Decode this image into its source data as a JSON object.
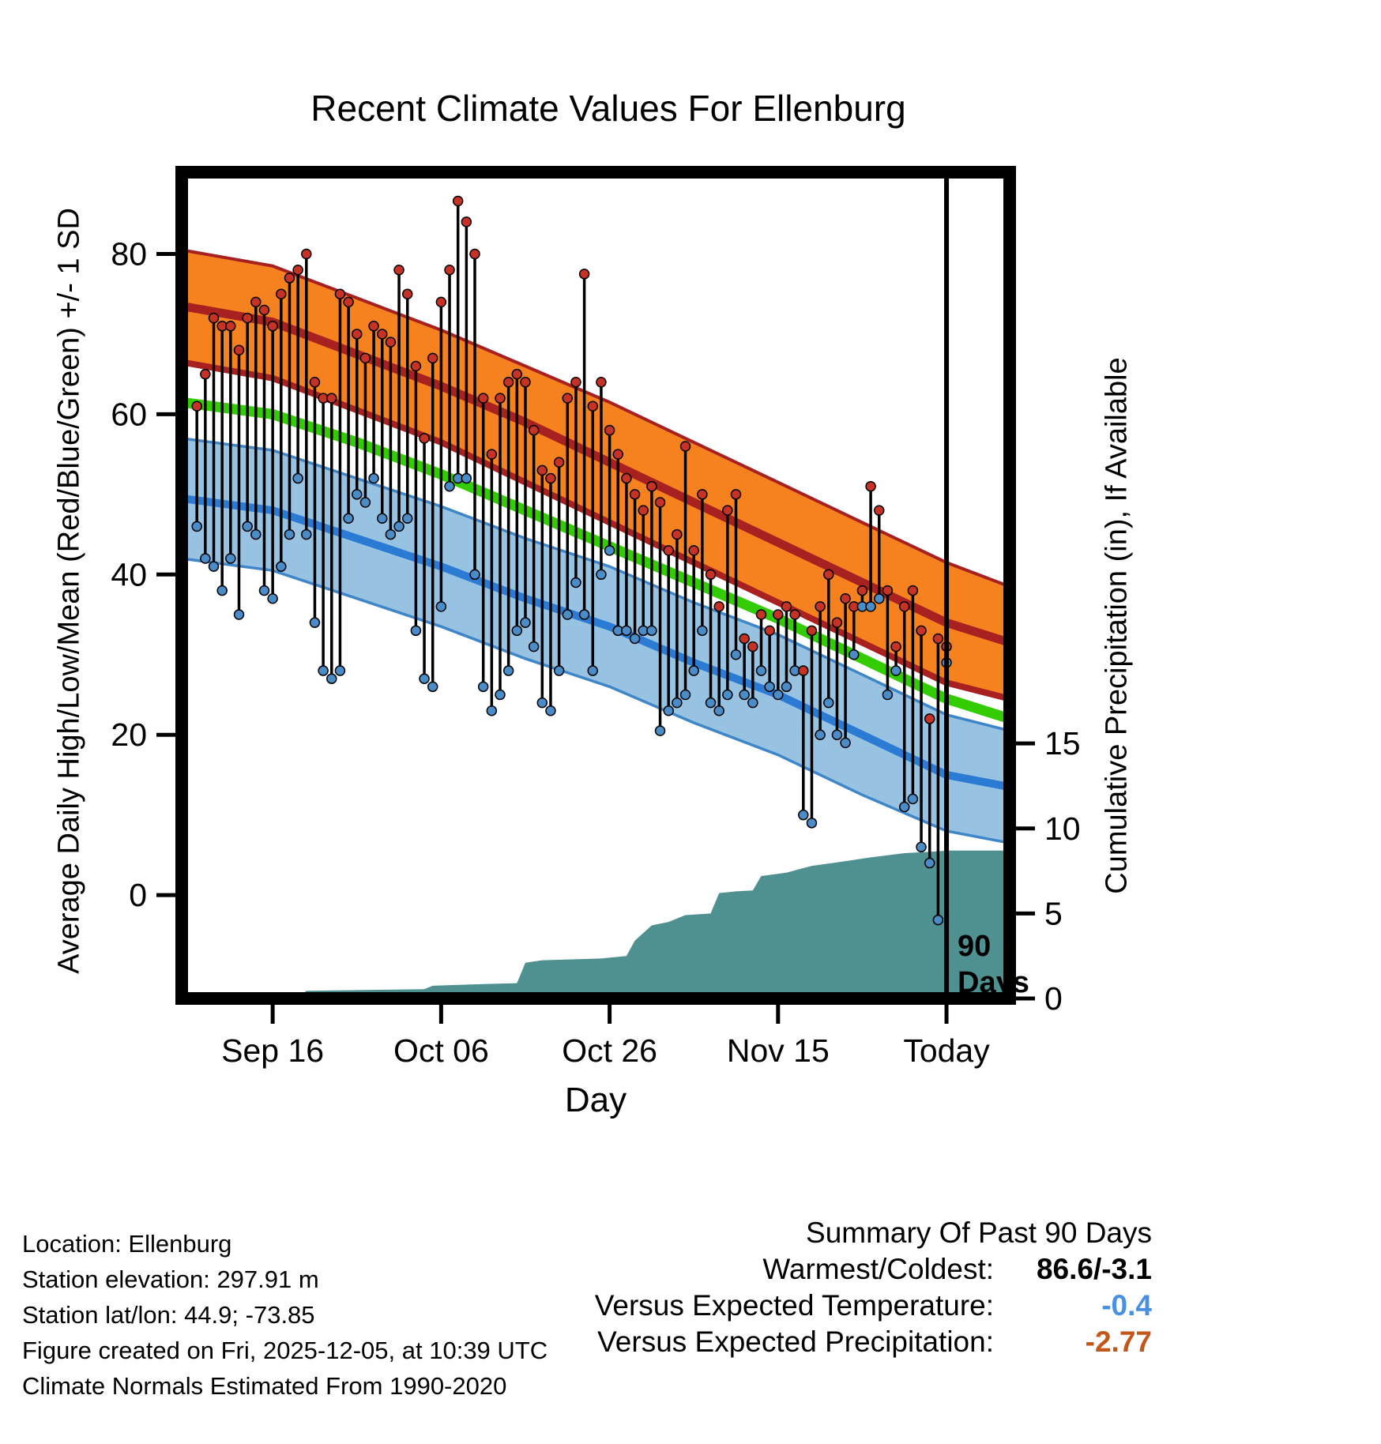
{
  "chart_data": {
    "type": "combo",
    "subtypes": [
      "band",
      "line",
      "hilo-scatter",
      "area"
    ],
    "title": "Recent Climate Values For Ellenburg",
    "xlabel": "Day",
    "ylabel_left": "Average Daily High/Low/Mean (Red/Blue/Green) +/- 1 SD",
    "ylabel_right": "Cumulative Precipitation (in), If Available",
    "x_tick_labels": [
      "Sep 16",
      "Oct 06",
      "Oct 26",
      "Nov 15",
      "Today"
    ],
    "x_tick_days": [
      9,
      29,
      49,
      69,
      89
    ],
    "x_range_days": [
      -1.8,
      96.5
    ],
    "y_left_ticks": [
      0,
      20,
      40,
      60,
      80
    ],
    "y_left_range": [
      -12.9,
      90.2
    ],
    "y_right_ticks": [
      0,
      5,
      10,
      15
    ],
    "y_right_range": [
      0,
      48.6
    ],
    "grid": false,
    "today_day": 89,
    "today_label_lines": [
      "90",
      "Days"
    ],
    "daily": {
      "high": [
        61,
        65,
        72,
        71,
        71,
        68,
        72,
        74,
        73,
        71,
        75,
        77,
        78,
        80,
        64,
        62,
        62,
        75,
        74,
        70,
        67,
        71,
        70,
        69,
        78,
        75,
        66,
        57,
        67,
        74,
        78,
        86.6,
        84,
        80,
        62,
        55,
        62,
        64,
        65,
        64,
        58,
        53,
        52,
        54,
        62,
        64,
        77.5,
        61,
        64,
        58,
        55,
        52,
        50,
        48,
        51,
        49,
        43,
        45,
        56,
        43,
        50,
        40,
        36,
        48,
        50,
        32,
        31,
        35,
        33,
        35,
        36,
        35,
        28,
        33,
        36,
        40,
        34,
        37,
        36,
        38,
        51,
        48,
        38,
        31,
        36,
        38,
        33,
        22,
        32,
        31
      ],
      "low": [
        46,
        42,
        41,
        38,
        42,
        35,
        46,
        45,
        38,
        37,
        41,
        45,
        52,
        45,
        34,
        28,
        27,
        28,
        47,
        50,
        49,
        52,
        47,
        45,
        46,
        47,
        33,
        27,
        26,
        36,
        51,
        52,
        52,
        40,
        26,
        23,
        25,
        28,
        33,
        34,
        31,
        24,
        23,
        28,
        35,
        39,
        35,
        28,
        40,
        43,
        33,
        33,
        32,
        33,
        33,
        20.5,
        23,
        24,
        25,
        28,
        33,
        24,
        23,
        25,
        30,
        25,
        24,
        28,
        26,
        25,
        26,
        28,
        10,
        9,
        20,
        24,
        20,
        19,
        30,
        36,
        36,
        37,
        25,
        28,
        11,
        12,
        6,
        4,
        -3.1,
        29
      ]
    },
    "normals": {
      "days": [
        -1.8,
        9,
        19,
        29,
        39,
        49,
        59,
        69,
        79,
        89,
        96.5
      ],
      "high_upper": [
        80.5,
        78.5,
        74.5,
        70.5,
        66,
        61.5,
        56.5,
        51.5,
        46.5,
        41.5,
        38.5
      ],
      "high_mean": [
        73.5,
        71.5,
        67.5,
        63.5,
        59,
        54,
        49,
        44,
        39,
        34,
        31.5
      ],
      "high_lower": [
        66.5,
        64.5,
        60.5,
        56.5,
        51.5,
        46.5,
        41.5,
        36.5,
        31.5,
        26.5,
        24.5
      ],
      "mean": [
        61.5,
        60,
        56.5,
        52.5,
        48,
        43.5,
        39,
        34.5,
        29.5,
        24.5,
        22
      ],
      "low_upper": [
        57,
        55.5,
        52,
        48.5,
        44.5,
        41,
        36.5,
        32.5,
        27.5,
        22.5,
        20.5
      ],
      "low_mean": [
        49.5,
        48,
        44.5,
        41,
        37,
        33.5,
        29,
        25,
        20,
        15,
        13.5
      ],
      "low_lower": [
        42,
        40.5,
        37,
        33.5,
        29.5,
        26,
        21.5,
        17.5,
        12.5,
        8,
        6.5
      ]
    },
    "precip_cumulative": {
      "days": [
        -1.8,
        12,
        13,
        20,
        27,
        28,
        34,
        38,
        39,
        41,
        48,
        51,
        52,
        54,
        56,
        58,
        61,
        62,
        64,
        66,
        67,
        70,
        73,
        76,
        80,
        84,
        88,
        89,
        96.5
      ],
      "values": [
        0,
        0,
        0.45,
        0.5,
        0.55,
        0.75,
        0.85,
        0.9,
        2.1,
        2.25,
        2.35,
        2.5,
        3.4,
        4.3,
        4.5,
        4.9,
        5.0,
        6.2,
        6.3,
        6.35,
        7.2,
        7.4,
        7.8,
        8.0,
        8.3,
        8.55,
        8.65,
        8.7,
        8.7
      ]
    },
    "colors": {
      "high_band": "#F5821F",
      "high_line": "#A82020",
      "low_band": "#97C2E2",
      "low_edge": "#3E86C8",
      "low_line": "#2B7BD4",
      "mean_line": "#33CC00",
      "high_dot": "#C63326",
      "low_dot": "#4A8CC8",
      "precip_area": "#4F9090",
      "frame": "#000000"
    }
  },
  "footer": {
    "lines": [
      "Location: Ellenburg",
      "Station elevation: 297.91 m",
      "Station lat/lon: 44.9; -73.85",
      "Figure created on Fri, 2025-12-05, at 10:39 UTC",
      "Climate Normals Estimated From 1990-2020"
    ]
  },
  "summary": {
    "title": "Summary Of Past 90 Days",
    "rows": [
      {
        "label": "Warmest/Coldest:",
        "value": "86.6/-3.1",
        "color": "#000000"
      },
      {
        "label": "Versus Expected Temperature:",
        "value": "-0.4",
        "color": "#4A90E2"
      },
      {
        "label": "Versus Expected Precipitation:",
        "value": "-2.77",
        "color": "#C2571A"
      }
    ]
  }
}
